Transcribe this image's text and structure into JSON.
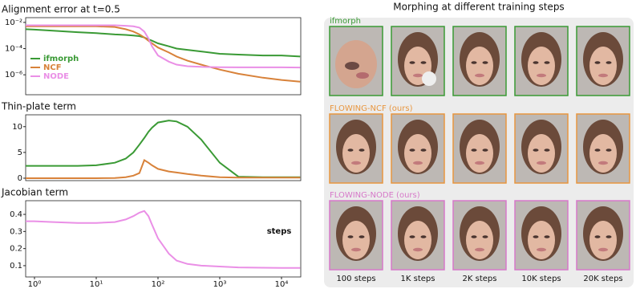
{
  "chart_data": [
    {
      "type": "line",
      "title": "Alignment error at t=0.5",
      "xlog": true,
      "ylog": true,
      "xlim": [
        0.72,
        20500
      ],
      "ylim": [
        3e-08,
        0.023
      ],
      "yticks": [
        {
          "value": 0.01,
          "label": "10⁻²"
        },
        {
          "value": 0.0001,
          "label": "10⁻⁴"
        },
        {
          "value": 1e-06,
          "label": "10⁻⁶"
        }
      ],
      "x": [
        0.72,
        1,
        2,
        5,
        10,
        20,
        30,
        40,
        50,
        60,
        70,
        80,
        100,
        150,
        200,
        300,
        500,
        1000,
        2000,
        5000,
        10000,
        20000
      ],
      "legend": "lower left",
      "series": [
        {
          "name": "ifmorph",
          "color": "#3a9a35",
          "values": [
            0.003,
            0.0028,
            0.0023,
            0.0018,
            0.0015,
            0.0012,
            0.0011,
            0.001,
            0.0009,
            0.0007,
            0.0005,
            0.0004,
            0.00025,
            0.00015,
            0.0001,
            8e-05,
            6e-05,
            4e-05,
            3.5e-05,
            3e-05,
            3e-05,
            2.5e-05
          ]
        },
        {
          "name": "NCF",
          "color": "#d8823a",
          "values": [
            0.005,
            0.005,
            0.005,
            0.005,
            0.005,
            0.0045,
            0.003,
            0.002,
            0.0012,
            0.0007,
            0.0004,
            0.00025,
            0.00012,
            5e-05,
            2.5e-05,
            1.2e-05,
            6e-06,
            2.5e-06,
            1.2e-06,
            6e-07,
            4e-07,
            3e-07
          ]
        },
        {
          "name": "NODE",
          "color": "#ea8fe6",
          "values": [
            0.006,
            0.006,
            0.006,
            0.006,
            0.006,
            0.006,
            0.0055,
            0.005,
            0.004,
            0.002,
            0.0006,
            0.00015,
            3e-05,
            1e-05,
            6e-06,
            4.5e-06,
            4e-06,
            3.8e-06,
            3.7e-06,
            3.7e-06,
            3.7e-06,
            3.6e-06
          ]
        }
      ]
    },
    {
      "type": "line",
      "title": "Thin-plate term",
      "xlog": true,
      "ylog": false,
      "xlim": [
        0.72,
        20500
      ],
      "ylim": [
        -0.47,
        12.3
      ],
      "yticks": [
        0,
        5,
        10
      ],
      "x": [
        0.72,
        1,
        2,
        5,
        10,
        20,
        30,
        40,
        50,
        60,
        70,
        80,
        100,
        150,
        200,
        300,
        500,
        1000,
        2000,
        5000,
        10000,
        20000
      ],
      "series": [
        {
          "color": "#3a9a35",
          "values": [
            2.4,
            2.4,
            2.4,
            2.4,
            2.5,
            3,
            3.8,
            5,
            6.5,
            7.8,
            9,
            9.8,
            10.8,
            11.2,
            11,
            10,
            7.5,
            3,
            0.3,
            0.2,
            0.2,
            0.2
          ]
        },
        {
          "color": "#d8823a",
          "values": [
            0,
            0,
            0,
            0,
            0,
            0.05,
            0.2,
            0.5,
            1,
            3.5,
            3,
            2.5,
            1.8,
            1.3,
            1.1,
            0.8,
            0.5,
            0.2,
            0.1,
            0.1,
            0.1,
            0.1
          ]
        }
      ]
    },
    {
      "type": "line",
      "title": "Jacobian term",
      "xlog": true,
      "ylog": false,
      "xlim": [
        0.72,
        20500
      ],
      "ylim": [
        0.034,
        0.48
      ],
      "yticks": [
        0.1,
        0.2,
        0.3,
        0.4
      ],
      "xticks": [
        {
          "value": 1,
          "label": "10⁰"
        },
        {
          "value": 10,
          "label": "10¹"
        },
        {
          "value": 100,
          "label": "10²"
        },
        {
          "value": 1000,
          "label": "10³"
        },
        {
          "value": 10000,
          "label": "10⁴"
        }
      ],
      "annotation": "steps",
      "x": [
        0.72,
        1,
        2,
        5,
        10,
        20,
        30,
        40,
        50,
        60,
        70,
        80,
        100,
        150,
        200,
        300,
        500,
        1000,
        2000,
        5000,
        10000,
        20000
      ],
      "series": [
        {
          "color": "#ea8fe6",
          "values": [
            0.36,
            0.36,
            0.355,
            0.35,
            0.35,
            0.355,
            0.37,
            0.39,
            0.41,
            0.42,
            0.39,
            0.34,
            0.26,
            0.17,
            0.13,
            0.11,
            0.1,
            0.095,
            0.09,
            0.088,
            0.087,
            0.087
          ]
        }
      ]
    }
  ],
  "morphing_panel": {
    "title": "Morphing at different training steps",
    "rows": [
      {
        "label": "ifmorph",
        "color": "#3a9a35"
      },
      {
        "label": "FLOWING-NCF (ours)",
        "color": "#e8963f"
      },
      {
        "label": "FLOWING-NODE (ours)",
        "color": "#d679c9"
      }
    ],
    "columns": [
      "100 steps",
      "1K steps",
      "2K steps",
      "10K steps",
      "20K steps"
    ]
  }
}
